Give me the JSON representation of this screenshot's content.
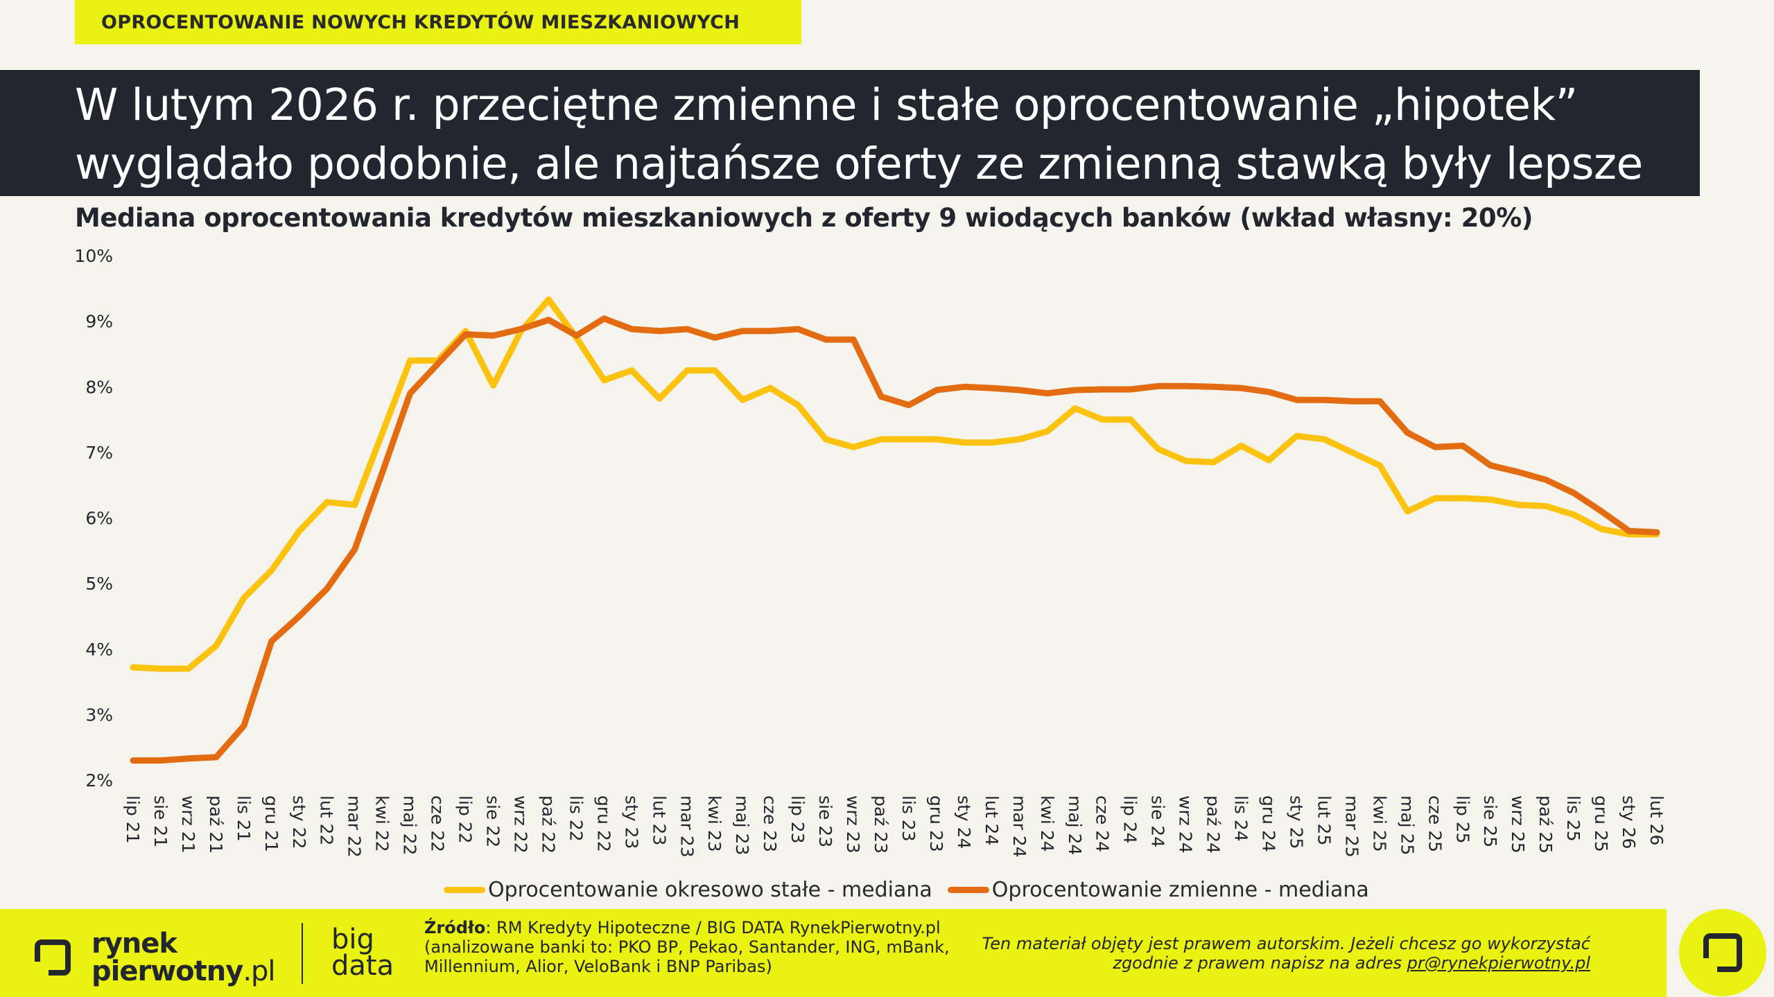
{
  "header": {
    "tag": "OPROCENTOWANIE NOWYCH KREDYTÓW MIESZKANIOWYCH",
    "headline_line1": "W lutym 2026 r. przeciętne zmienne i stałe oprocentowanie „hipotek”",
    "headline_line2": "wyglądało podobnie, ale najtańsze oferty ze zmienną stawką były lepsze",
    "subtitle": "Mediana oprocentowania kredytów mieszkaniowych z oferty 9 wiodących banków (wkład własny: 20%)"
  },
  "legend": {
    "fixed": "Oprocentowanie okresowo stałe - mediana",
    "variable": "Oprocentowanie zmienne - mediana"
  },
  "footer": {
    "logo_line1": "rynek",
    "logo_line2a": "pierwotny",
    "logo_line2b": ".pl",
    "bigdata_line1": "big",
    "bigdata_line2": "data",
    "source_label": "Źródło",
    "source_rest": ": RM Kredyty Hipoteczne / BIG DATA RynekPierwotny.pl",
    "source_line2": "(analizowane banki to: PKO BP, Pekao, Santander, ING, mBank,",
    "source_line3": "Millennium, Alior, VeloBank i BNP Paribas)",
    "copy_line1": "Ten materiał objęty jest prawem autorskim. Jeżeli chcesz go wykorzystać",
    "copy_line2a": "zgodnie z prawem napisz na adres ",
    "copy_email": "pr@rynekpierwotny.pl"
  },
  "colors": {
    "fixed": "#fbc20f",
    "variable": "#e36c13",
    "accent": "#e9f211",
    "dark": "#23252f"
  },
  "chart_data": {
    "type": "line",
    "title": "Mediana oprocentowania kredytów mieszkaniowych z oferty 9 wiodących banków (wkład własny: 20%)",
    "ylim": [
      2,
      10
    ],
    "yticks": [
      "2%",
      "3%",
      "4%",
      "5%",
      "6%",
      "7%",
      "8%",
      "9%",
      "10%"
    ],
    "grid": false,
    "legend_position": "bottom",
    "categories": [
      "lip 21",
      "sie 21",
      "wrz 21",
      "paź 21",
      "lis 21",
      "gru 21",
      "sty 22",
      "lut 22",
      "mar 22",
      "kwi 22",
      "maj 22",
      "cze 22",
      "lip 22",
      "sie 22",
      "wrz 22",
      "paź 22",
      "lis 22",
      "gru 22",
      "sty 23",
      "lut 23",
      "mar 23",
      "kwi 23",
      "maj 23",
      "cze 23",
      "lip 23",
      "sie 23",
      "wrz 23",
      "paź 23",
      "lis 23",
      "gru 23",
      "sty 24",
      "lut 24",
      "mar 24",
      "kwi 24",
      "maj 24",
      "cze 24",
      "lip 24",
      "sie 24",
      "wrz 24",
      "paź 24",
      "lis 24",
      "gru 24",
      "sty 25",
      "lut 25",
      "mar 25",
      "kwi 25",
      "maj 25",
      "cze 25",
      "lip 25",
      "sie 25",
      "wrz 25",
      "paź 25",
      "lis 25",
      "gru 25",
      "sty 26",
      "lut 26"
    ],
    "x_labels_step": 1,
    "series": [
      {
        "name": "Oprocentowanie okresowo stałe - mediana",
        "values": [
          3.72,
          3.7,
          3.7,
          4.05,
          4.78,
          5.2,
          5.8,
          6.24,
          6.2,
          7.3,
          8.4,
          8.4,
          8.85,
          8.02,
          8.85,
          9.33,
          8.75,
          8.1,
          8.25,
          7.82,
          8.25,
          8.25,
          7.8,
          7.98,
          7.72,
          7.2,
          7.08,
          7.2,
          7.2,
          7.2,
          7.15,
          7.15,
          7.2,
          7.32,
          7.67,
          7.5,
          7.5,
          7.05,
          6.87,
          6.85,
          7.1,
          6.88,
          7.25,
          7.2,
          7.0,
          6.8,
          6.1,
          6.3,
          6.3,
          6.28,
          6.2,
          6.18,
          6.05,
          5.83,
          5.75,
          5.75
        ]
      },
      {
        "name": "Oprocentowanie zmienne - mediana",
        "values": [
          2.3,
          2.3,
          2.33,
          2.35,
          2.83,
          4.12,
          4.5,
          4.92,
          5.52,
          6.7,
          7.9,
          8.35,
          8.8,
          8.78,
          8.88,
          9.02,
          8.78,
          9.04,
          8.88,
          8.85,
          8.88,
          8.75,
          8.85,
          8.85,
          8.88,
          8.72,
          8.72,
          7.85,
          7.72,
          7.95,
          8.0,
          7.98,
          7.95,
          7.9,
          7.95,
          7.96,
          7.96,
          8.01,
          8.01,
          8.0,
          7.98,
          7.92,
          7.8,
          7.8,
          7.78,
          7.78,
          7.3,
          7.08,
          7.1,
          6.8,
          6.7,
          6.58,
          6.38,
          6.1,
          5.8,
          5.78
        ]
      }
    ]
  }
}
